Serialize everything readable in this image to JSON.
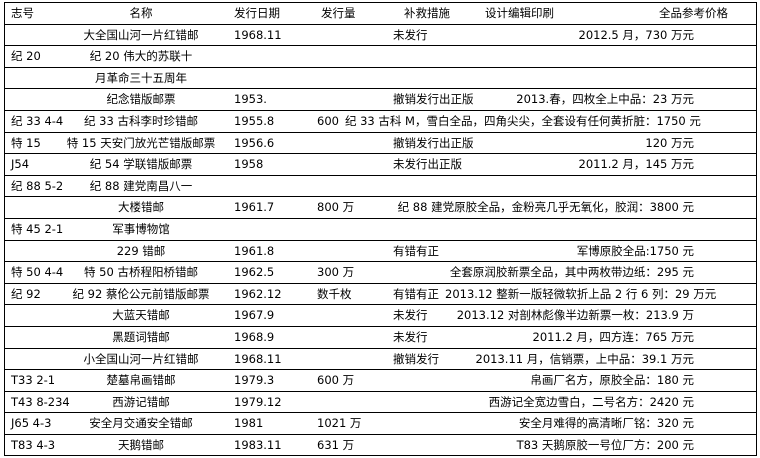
{
  "header": {
    "code": "志号",
    "name": "名称",
    "date": "发行日期",
    "qty": "发行量",
    "measure": "补救措施",
    "design": "设计编辑印刷",
    "price": "全品参考价格"
  },
  "rows": [
    {
      "code": "",
      "name": "大全国山河一片红错邮",
      "date": "1968.11",
      "qty": "",
      "measure": "未发行",
      "price": "2012.5 月，730 万元"
    },
    {
      "code": "纪 20",
      "name": "纪 20 伟大的苏联十",
      "date": "",
      "qty": "",
      "measure": "",
      "price": ""
    },
    {
      "code": "",
      "name": "月革命三十五周年",
      "date": "",
      "qty": "",
      "measure": "",
      "price": ""
    },
    {
      "code": "",
      "name": "纪念错版邮票",
      "date": "1953.",
      "qty": "",
      "measure": "撤销发行出正版",
      "price": "2013.春，四枚全上中品：23 万元"
    },
    {
      "code": "纪 33 4-4",
      "name": "纪 33 古科李时珍错邮",
      "date": "1955.8",
      "qty": "600",
      "measure": "",
      "price": "纪 33 古科 M，雪白全品，四角尖尖，全套设有任何黄折脏：1750 元"
    },
    {
      "code": "特 15",
      "name": "特 15 天安门放光芒错版邮票",
      "date": "1956.6",
      "qty": "",
      "measure": "撤销发行出正版",
      "price": "120 万元"
    },
    {
      "code": "J54",
      "name": "纪 54 学联错版邮票",
      "date": "1958",
      "qty": "",
      "measure": "未发行出正版",
      "price": "2011.2 月，145 万元"
    },
    {
      "code": "纪 88 5-2",
      "name": "纪 88 建党南昌八一",
      "date": "",
      "qty": "",
      "measure": "",
      "price": ""
    },
    {
      "code": "",
      "name": "大楼错邮",
      "date": "1961.7",
      "qty": "800 万",
      "measure": "",
      "price": "纪 88 建党原胶全品，金粉亮几乎无氧化，胶润：3800 元"
    },
    {
      "code": "特 45 2-1",
      "name": "军事博物馆",
      "date": "",
      "qty": "",
      "measure": "",
      "price": ""
    },
    {
      "code": "",
      "name": "229 错邮",
      "date": "1961.8",
      "qty": "",
      "measure": "有错有正",
      "price": "军博原胶全品:1750 元"
    },
    {
      "code": "特 50 4-4",
      "name": "特 50 古桥程阳桥错邮",
      "date": "1962.5",
      "qty": "300 万",
      "measure": "",
      "price": "全套原润胶新票全品，其中两枚带边纸：295 元"
    },
    {
      "code": "纪 92",
      "name": "纪 92 蔡伦公元前错版邮票",
      "date": "1962.12",
      "qty": "数千枚",
      "measure": "有错有正",
      "price": "2013.12 整新一版轻微软折上品 2 行 6 列：29 万元"
    },
    {
      "code": "",
      "name": "大蓝天错邮",
      "date": "1967.9",
      "qty": "",
      "measure": "未发行",
      "price": "2013.12 对剖林彪像半边新票一枚：213.9 万"
    },
    {
      "code": "",
      "name": "黑题词错邮",
      "date": "1968.9",
      "qty": "",
      "measure": "未发行",
      "price": "2011.2 月，四方连：765 万元"
    },
    {
      "code": "",
      "name": "小全国山河一片红错邮",
      "date": "1968.11",
      "qty": "",
      "measure": "撤销发行",
      "price": "2013.11 月，信销票，上中品：39.1 万元"
    },
    {
      "code": "T33 2-1",
      "name": "楚墓帛画错邮",
      "date": "1979.3",
      "qty": "600 万",
      "measure": "",
      "price": "帛画厂名方，原胶全品：180 元"
    },
    {
      "code": "T43 8-234",
      "name": "西游记错邮",
      "date": "1979.12",
      "qty": "",
      "measure": "",
      "price": "西游记全宽边雪白，二号名方：2420 元"
    },
    {
      "code": "J65 4-3",
      "name": "安全月交通安全错邮",
      "date": "1981",
      "qty": "1021 万",
      "measure": "",
      "price": "安全月难得的高清晰厂铭：320 元"
    },
    {
      "code": "T83 4-3",
      "name": "天鹅错邮",
      "date": "1983.11",
      "qty": "631 万",
      "measure": "",
      "price": "T83 天鹅原胶一号位厂方：200 元"
    }
  ]
}
